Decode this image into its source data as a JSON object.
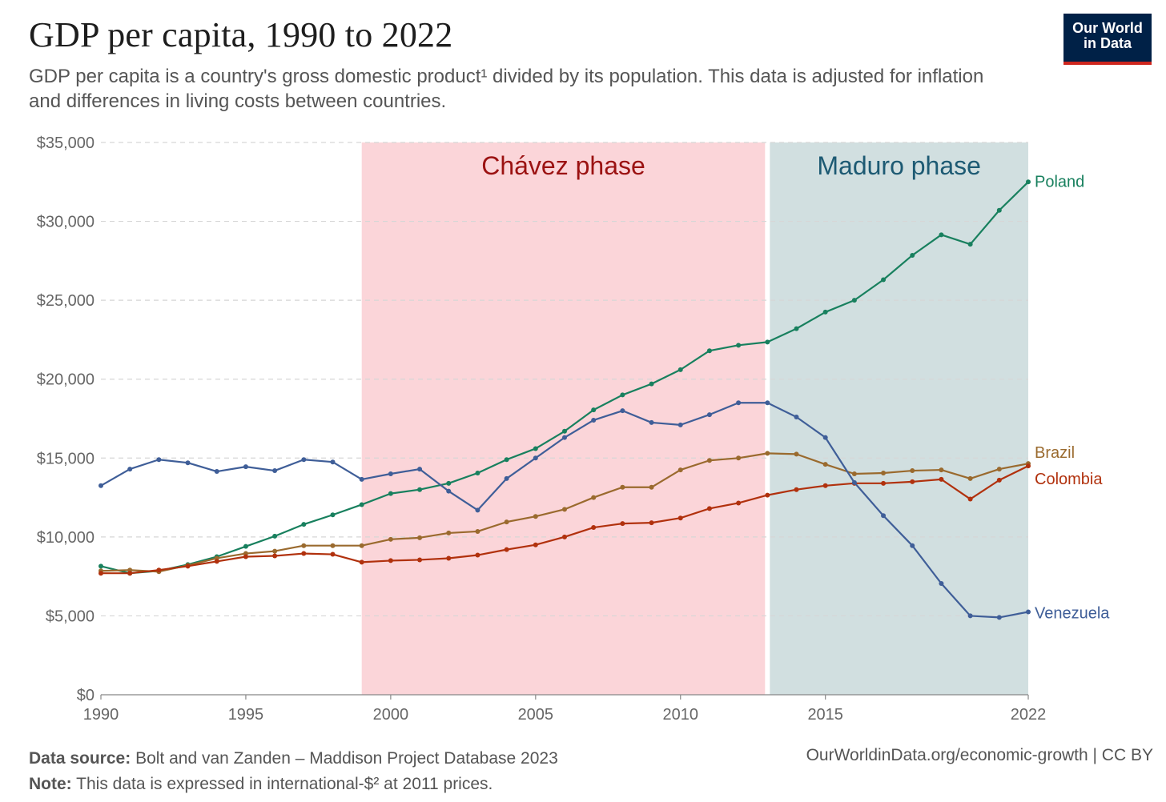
{
  "header": {
    "title": "GDP per capita, 1990 to 2022",
    "subtitle": "GDP per capita is a country's gross domestic product¹ divided by its population. This data is adjusted for inflation and differences in living costs between countries."
  },
  "logo": {
    "line1": "Our World",
    "line2": "in Data"
  },
  "footer": {
    "source_label": "Data source:",
    "source_text": "Bolt and van Zanden – Maddison Project Database 2023",
    "note_label": "Note:",
    "note_text": "This data is expressed in international-$² at 2011 prices.",
    "url": "OurWorldinData.org/economic-growth | CC BY"
  },
  "chart_data": {
    "type": "line",
    "xlim": [
      1990,
      2022
    ],
    "ylim": [
      0,
      35000
    ],
    "x_ticks": [
      1990,
      1995,
      2000,
      2005,
      2010,
      2015,
      2022
    ],
    "y_ticks": [
      0,
      5000,
      10000,
      15000,
      20000,
      25000,
      30000,
      35000
    ],
    "y_tick_labels": [
      "$0",
      "$5,000",
      "$10,000",
      "$15,000",
      "$20,000",
      "$25,000",
      "$30,000",
      "$35,000"
    ],
    "grid": "horizontal dashed",
    "legend": "end-of-line labels",
    "phases": [
      {
        "label": "Chávez phase",
        "start": 1999,
        "end": 2013,
        "fill": "#fbd5d9",
        "text_color": "#9b1212"
      },
      {
        "label": "Maduro phase",
        "start": 2013,
        "end": 2022,
        "fill": "#d1dfe0",
        "text_color": "#1d5a73"
      }
    ],
    "x": [
      1990,
      1991,
      1992,
      1993,
      1994,
      1995,
      1996,
      1997,
      1998,
      1999,
      2000,
      2001,
      2002,
      2003,
      2004,
      2005,
      2006,
      2007,
      2008,
      2009,
      2010,
      2011,
      2012,
      2013,
      2014,
      2015,
      2016,
      2017,
      2018,
      2019,
      2020,
      2021,
      2022
    ],
    "series": [
      {
        "name": "Poland",
        "color": "#18805e",
        "values": [
          8150,
          7700,
          7850,
          8250,
          8750,
          9400,
          10050,
          10800,
          11400,
          12050,
          12750,
          13000,
          13400,
          14050,
          14900,
          15600,
          16700,
          18050,
          19000,
          19700,
          20600,
          21800,
          22150,
          22350,
          23200,
          24250,
          25000,
          26300,
          27850,
          29150,
          28550,
          30700,
          32500
        ]
      },
      {
        "name": "Brazil",
        "color": "#9a6a2e",
        "values": [
          7850,
          7900,
          7800,
          8200,
          8650,
          8950,
          9100,
          9450,
          9450,
          9450,
          9850,
          9950,
          10250,
          10350,
          10950,
          11300,
          11750,
          12500,
          13150,
          13150,
          14250,
          14850,
          15000,
          15300,
          15250,
          14600,
          14000,
          14050,
          14200,
          14250,
          13700,
          14300,
          14650
        ]
      },
      {
        "name": "Colombia",
        "color": "#b1310d",
        "values": [
          7700,
          7700,
          7900,
          8150,
          8450,
          8750,
          8800,
          8950,
          8900,
          8400,
          8500,
          8550,
          8650,
          8850,
          9200,
          9500,
          10000,
          10600,
          10850,
          10900,
          11200,
          11800,
          12150,
          12650,
          13000,
          13250,
          13400,
          13400,
          13500,
          13650,
          12400,
          13600,
          14500
        ]
      },
      {
        "name": "Venezuela",
        "color": "#3f5e98",
        "values": [
          13250,
          14300,
          14900,
          14700,
          14150,
          14450,
          14200,
          14900,
          14750,
          13650,
          14000,
          14300,
          12900,
          11700,
          13700,
          15000,
          16300,
          17400,
          18000,
          17250,
          17100,
          17750,
          18500,
          18500,
          17600,
          16300,
          13450,
          11350,
          9450,
          7050,
          5000,
          4900,
          5250
        ]
      }
    ]
  }
}
